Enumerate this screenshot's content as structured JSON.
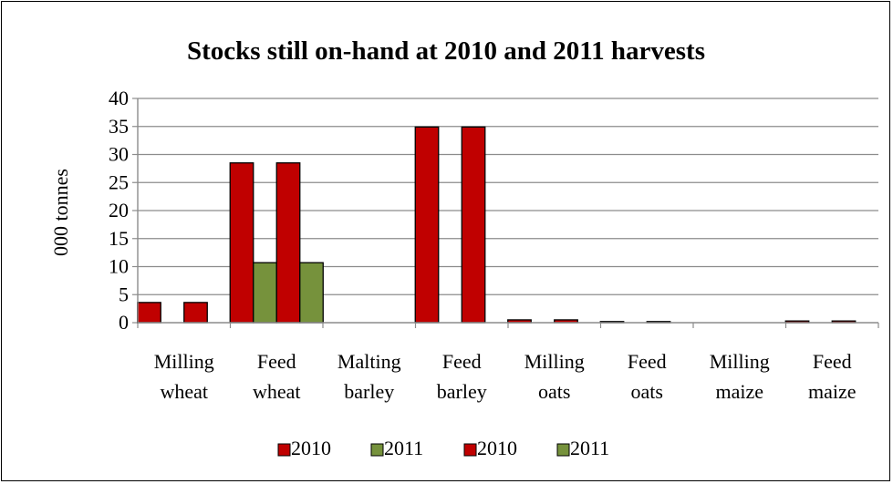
{
  "chart_data": {
    "type": "bar",
    "title": "Stocks still on-hand at 2010 and 2011 harvests",
    "xlabel": "",
    "ylabel": "000 tonnes",
    "ylim": [
      0,
      40
    ],
    "yticks": [
      "0",
      "5",
      "10",
      "15",
      "20",
      "25",
      "30",
      "35",
      "40"
    ],
    "ytick_values": [
      0,
      5,
      10,
      15,
      20,
      25,
      30,
      35,
      40
    ],
    "grid": true,
    "legend_position": "bottom",
    "categories": [
      [
        "Milling",
        "wheat"
      ],
      [
        "Feed",
        "wheat"
      ],
      [
        "Malting",
        "barley"
      ],
      [
        "Feed",
        "barley"
      ],
      [
        "Milling",
        "oats"
      ],
      [
        "Feed",
        "oats"
      ],
      [
        "Milling",
        "maize"
      ],
      [
        "Feed",
        "maize"
      ]
    ],
    "series": [
      {
        "name": "2010",
        "color": "#c00000",
        "values": [
          3.6,
          28.5,
          0,
          34.9,
          0.5,
          0.2,
          0,
          0.3
        ]
      },
      {
        "name": "2011",
        "color": "#76923c",
        "values": [
          0,
          10.7,
          0,
          0,
          0,
          0,
          0,
          0
        ]
      },
      {
        "name": "2010",
        "color": "#c00000",
        "values": [
          3.6,
          28.5,
          0,
          34.9,
          0.5,
          0.2,
          0,
          0.3
        ]
      },
      {
        "name": "2011",
        "color": "#76923c",
        "values": [
          0,
          10.7,
          0,
          0,
          0,
          0,
          0,
          0
        ]
      }
    ]
  }
}
